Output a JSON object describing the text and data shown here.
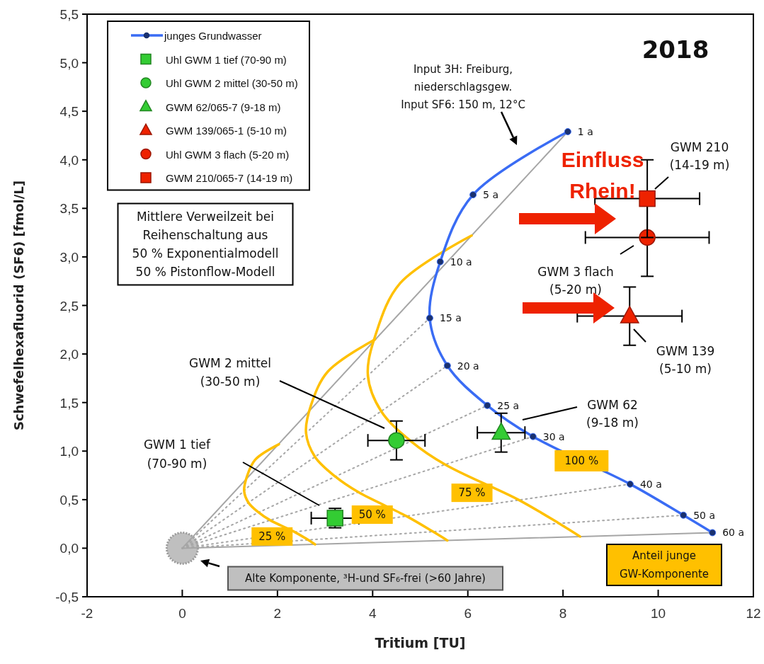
{
  "chart_data": {
    "type": "scatter",
    "title": "2018",
    "xlabel": "Tritium [TU]",
    "ylabel": "Schwefelhexafluorid (SF6) [fmol/L]",
    "xlim": [
      -2,
      12
    ],
    "ylim": [
      -0.5,
      5.5
    ],
    "xticks": [
      -2,
      0,
      2,
      4,
      6,
      8,
      10,
      12
    ],
    "yticks": [
      {
        "value": -0.5,
        "label": "-0,5"
      },
      {
        "value": 0,
        "label": "0,0"
      },
      {
        "value": 0.5,
        "label": "0,5"
      },
      {
        "value": 1,
        "label": "1,0"
      },
      {
        "value": 1.5,
        "label": "1,5"
      },
      {
        "value": 2,
        "label": "2,0"
      },
      {
        "value": 2.5,
        "label": "2,5"
      },
      {
        "value": 3,
        "label": "3,0"
      },
      {
        "value": 3.5,
        "label": "3,5"
      },
      {
        "value": 4,
        "label": "4,0"
      },
      {
        "value": 4.5,
        "label": "4,5"
      },
      {
        "value": 5,
        "label": "5,0"
      },
      {
        "value": 5.5,
        "label": "5,5"
      }
    ],
    "legend": "top left",
    "series": [
      {
        "type": "line",
        "color": "#a6a6a6",
        "line_style": "solid",
        "x": [
          0,
          8.1
        ],
        "values": [
          0,
          4.29
        ]
      },
      {
        "type": "line",
        "color": "#a6a6a6",
        "line_style": "solid",
        "x": [
          0,
          11.14
        ],
        "values": [
          0,
          0.16
        ]
      },
      {
        "type": "line",
        "color": "#a6a6a6",
        "line_style": "dotted",
        "x": [
          0,
          5.2
        ],
        "values": [
          0,
          2.37
        ]
      },
      {
        "type": "line",
        "color": "#a6a6a6",
        "line_style": "dotted",
        "x": [
          0,
          5.57
        ],
        "values": [
          0,
          1.88
        ]
      },
      {
        "type": "line",
        "color": "#a6a6a6",
        "line_style": "dotted",
        "x": [
          0,
          6.41
        ],
        "values": [
          0,
          1.47
        ]
      },
      {
        "type": "line",
        "color": "#a6a6a6",
        "line_style": "dotted",
        "x": [
          0,
          7.37
        ],
        "values": [
          0,
          1.15
        ]
      },
      {
        "type": "line",
        "color": "#a6a6a6",
        "line_style": "dotted",
        "x": [
          0,
          9.41
        ],
        "values": [
          0,
          0.66
        ]
      },
      {
        "type": "line",
        "color": "#a6a6a6",
        "line_style": "dotted",
        "x": [
          0,
          10.53
        ],
        "values": [
          0,
          0.34
        ]
      },
      {
        "type": "line",
        "name": "25 %",
        "color": "#ffc000",
        "line_style": "solid",
        "x": [
          2.03,
          1.53,
          1.36,
          1.3,
          1.39,
          1.6,
          1.84,
          2.35,
          2.63,
          2.79
        ],
        "values": [
          1.07,
          0.91,
          0.74,
          0.59,
          0.47,
          0.37,
          0.29,
          0.17,
          0.09,
          0.04
        ]
      },
      {
        "type": "line",
        "name": "50 %",
        "color": "#ffc000",
        "line_style": "solid",
        "x": [
          4.05,
          3.06,
          2.71,
          2.6,
          2.79,
          3.21,
          3.69,
          4.71,
          5.27,
          5.57
        ],
        "values": [
          2.15,
          1.82,
          1.48,
          1.19,
          0.94,
          0.74,
          0.58,
          0.33,
          0.17,
          0.08
        ]
      },
      {
        "type": "line",
        "name": "75 %",
        "color": "#ffc000",
        "line_style": "solid",
        "x": [
          6.08,
          4.58,
          4.07,
          3.9,
          4.18,
          4.81,
          5.53,
          7.06,
          7.9,
          8.36
        ],
        "values": [
          3.22,
          2.73,
          2.21,
          1.78,
          1.41,
          1.1,
          0.86,
          0.5,
          0.26,
          0.12
        ]
      },
      {
        "type": "line",
        "name": "junges Grundwasser",
        "color": "#3a6cf4",
        "line_style": "solid",
        "marker": "circle",
        "x": [
          8.1,
          6.11,
          5.42,
          5.2,
          5.57,
          6.41,
          7.37,
          9.41,
          10.53,
          11.14
        ],
        "values": [
          4.29,
          3.64,
          2.95,
          2.37,
          1.88,
          1.47,
          1.15,
          0.66,
          0.34,
          0.16
        ]
      },
      {
        "type": "bubble",
        "color": "#bfbfbf",
        "marker": "circle",
        "x": [
          0
        ],
        "values": [
          0
        ],
        "sizes": [
          1
        ]
      },
      {
        "name": "Uhl GWM 1 tief (70-90 m)",
        "color": "#33cc33",
        "marker": "square",
        "x": [
          3.21
        ],
        "values": [
          0.31
        ],
        "errors": [
          0.1
        ],
        "xerrors": [
          0.5
        ]
      },
      {
        "name": "Uhl GWM 2 mittel (30-50 m)",
        "color": "#33cc33",
        "marker": "circle",
        "x": [
          4.5
        ],
        "values": [
          1.11
        ],
        "errors": [
          0.2
        ],
        "xerrors": [
          0.6
        ]
      },
      {
        "name": "GWM 62/065-7 (9-18 m)",
        "color": "#33cc33",
        "marker": "triangle",
        "x": [
          6.7
        ],
        "values": [
          1.19
        ],
        "errors": [
          0.2
        ],
        "xerrors": [
          0.5
        ]
      },
      {
        "name": "GWM 139/065-1 (5-10 m)",
        "color": "#ee2200",
        "marker": "triangle",
        "x": [
          9.4
        ],
        "values": [
          2.39
        ],
        "errors": [
          0.3
        ],
        "xerrors": [
          1.1
        ]
      },
      {
        "name": "Uhl GWM 3 flach (5-20 m)",
        "color": "#ee2200",
        "marker": "circle",
        "x": [
          9.77
        ],
        "values": [
          3.2
        ],
        "errors": [
          0.4
        ],
        "xerrors": [
          1.3
        ]
      },
      {
        "name": "GWM 210/065-7 (14-19 m)",
        "color": "#ee2200",
        "marker": "square",
        "x": [
          9.77
        ],
        "values": [
          3.6
        ],
        "errors": [
          0.4
        ],
        "xerrors": [
          1.1
        ]
      }
    ],
    "annotations": [
      "Input 3H: Freiburg,\nniederschlagsgew.\nInput SF6: 150 m, 12°C",
      "GWM 2 mittel\n(30-50 m)",
      "GWM 1 tief\n(70-90 m)",
      "GWM 62\n(9-18 m)",
      "GWM 3 flach\n(5-20 m)",
      "GWM 210\n(14-19 m)",
      "GWM 139\n(5-10 m)",
      "Einfluss\nRhein!",
      {
        "text": "100 %",
        "x": 8.39,
        "y": 0.9
      },
      "Alte Komponente, ³H-und SF₆-frei (>60 Jahre)",
      "Anteil junge\nGW-Komponente",
      "Mittlere Verweilzeit bei\nReihenschaltung aus\n50 % Exponentialmodell\n50 % Pistonflow-Modell",
      {
        "text": "1 a",
        "x": 8.1,
        "y": 4.29
      },
      {
        "text": "5 a",
        "x": 6.11,
        "y": 3.64
      },
      {
        "text": "10 a",
        "x": 5.42,
        "y": 2.95
      },
      {
        "text": "15 a",
        "x": 5.2,
        "y": 2.37
      },
      {
        "text": "20 a",
        "x": 5.57,
        "y": 1.88
      },
      {
        "text": "25 a",
        "x": 6.41,
        "y": 1.47
      },
      {
        "text": "30 a",
        "x": 7.37,
        "y": 1.15
      },
      {
        "text": "40 a",
        "x": 9.41,
        "y": 0.66
      },
      {
        "text": "50 a",
        "x": 10.53,
        "y": 0.34
      },
      {
        "text": "60 a",
        "x": 11.14,
        "y": 0.16
      }
    ]
  }
}
